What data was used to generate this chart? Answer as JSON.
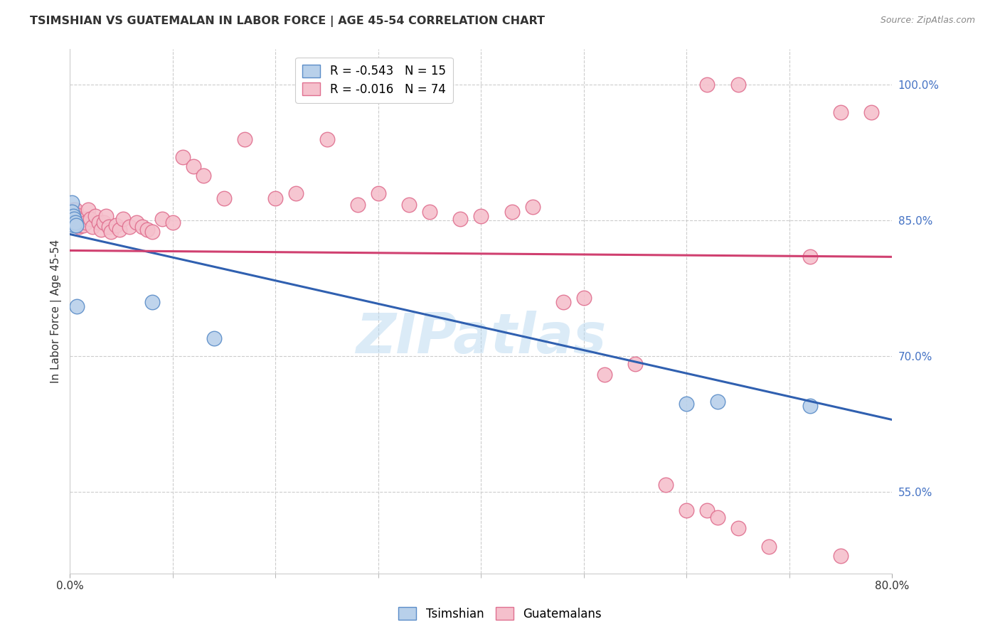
{
  "title": "TSIMSHIAN VS GUATEMALAN IN LABOR FORCE | AGE 45-54 CORRELATION CHART",
  "source": "Source: ZipAtlas.com",
  "ylabel": "In Labor Force | Age 45-54",
  "x_min": 0.0,
  "x_max": 0.8,
  "y_min": 0.46,
  "y_max": 1.04,
  "y_ticks_right": [
    0.55,
    0.7,
    0.85,
    1.0
  ],
  "y_tick_labels_right": [
    "55.0%",
    "70.0%",
    "85.0%",
    "100.0%"
  ],
  "legend_blue_r": "R = -0.543",
  "legend_blue_n": "N = 15",
  "legend_pink_r": "R = -0.016",
  "legend_pink_n": "N = 74",
  "legend_label_blue": "Tsimshian",
  "legend_label_pink": "Guatemalans",
  "blue_color": "#b8d0ea",
  "blue_edge_color": "#5b8dc8",
  "pink_color": "#f5c0cc",
  "pink_edge_color": "#e07090",
  "blue_line_color": "#3060b0",
  "pink_line_color": "#d04070",
  "watermark": "ZIPatlas",
  "blue_scatter_x": [
    0.001,
    0.002,
    0.002,
    0.003,
    0.003,
    0.004,
    0.004,
    0.005,
    0.006,
    0.007,
    0.08,
    0.14,
    0.6,
    0.63,
    0.72
  ],
  "blue_scatter_y": [
    0.855,
    0.87,
    0.86,
    0.855,
    0.848,
    0.852,
    0.845,
    0.848,
    0.845,
    0.755,
    0.76,
    0.72,
    0.648,
    0.65,
    0.645
  ],
  "pink_scatter_x": [
    0.001,
    0.001,
    0.002,
    0.002,
    0.003,
    0.003,
    0.003,
    0.004,
    0.004,
    0.005,
    0.005,
    0.006,
    0.007,
    0.007,
    0.008,
    0.009,
    0.01,
    0.01,
    0.012,
    0.013,
    0.015,
    0.016,
    0.018,
    0.02,
    0.022,
    0.025,
    0.028,
    0.03,
    0.033,
    0.035,
    0.038,
    0.04,
    0.045,
    0.048,
    0.052,
    0.058,
    0.065,
    0.07,
    0.075,
    0.08,
    0.09,
    0.1,
    0.11,
    0.12,
    0.13,
    0.15,
    0.17,
    0.2,
    0.22,
    0.25,
    0.28,
    0.3,
    0.33,
    0.35,
    0.38,
    0.4,
    0.43,
    0.45,
    0.48,
    0.5,
    0.52,
    0.55,
    0.58,
    0.6,
    0.62,
    0.63,
    0.65,
    0.68,
    0.72,
    0.75,
    0.62,
    0.65,
    0.75,
    0.78
  ],
  "pink_scatter_y": [
    0.855,
    0.848,
    0.86,
    0.852,
    0.862,
    0.855,
    0.848,
    0.862,
    0.855,
    0.862,
    0.855,
    0.857,
    0.852,
    0.845,
    0.85,
    0.843,
    0.852,
    0.845,
    0.848,
    0.845,
    0.852,
    0.848,
    0.862,
    0.852,
    0.843,
    0.855,
    0.848,
    0.84,
    0.848,
    0.855,
    0.843,
    0.838,
    0.845,
    0.84,
    0.852,
    0.843,
    0.848,
    0.843,
    0.84,
    0.838,
    0.852,
    0.848,
    0.92,
    0.91,
    0.9,
    0.875,
    0.94,
    0.875,
    0.88,
    0.94,
    0.868,
    0.88,
    0.868,
    0.86,
    0.852,
    0.855,
    0.86,
    0.865,
    0.76,
    0.765,
    0.68,
    0.692,
    0.558,
    0.53,
    0.53,
    0.522,
    0.51,
    0.49,
    0.81,
    0.48,
    1.0,
    1.0,
    0.97,
    0.97
  ],
  "blue_line_x0": 0.0,
  "blue_line_y0": 0.835,
  "blue_line_x1": 0.8,
  "blue_line_y1": 0.63,
  "pink_line_x0": 0.0,
  "pink_line_y0": 0.817,
  "pink_line_x1": 0.8,
  "pink_line_y1": 0.81
}
